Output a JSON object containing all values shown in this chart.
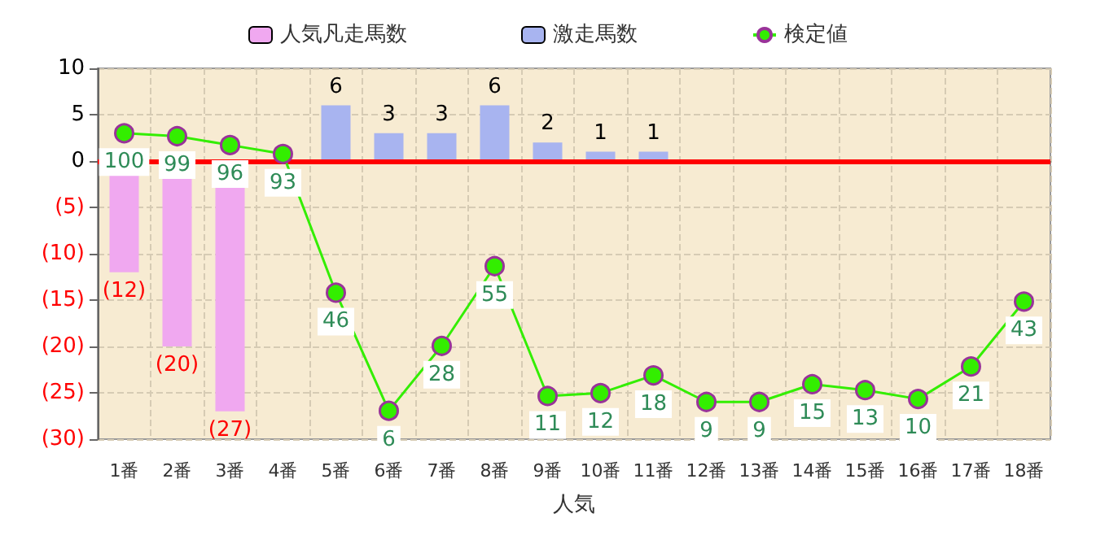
{
  "chart_data": {
    "type": "bar",
    "xlabel": "人気",
    "categories": [
      "1番",
      "2番",
      "3番",
      "4番",
      "5番",
      "6番",
      "7番",
      "8番",
      "9番",
      "10番",
      "11番",
      "12番",
      "13番",
      "14番",
      "15番",
      "16番",
      "17番",
      "18番"
    ],
    "series": [
      {
        "name": "人気凡走馬数",
        "color": "#f0a8f0",
        "values": [
          -12,
          -20,
          -27,
          null,
          null,
          null,
          null,
          null,
          null,
          null,
          null,
          null,
          null,
          null,
          null,
          null,
          null,
          null
        ],
        "value_labels": [
          "(12)",
          "(20)",
          "(27)",
          null,
          null,
          null,
          null,
          null,
          null,
          null,
          null,
          null,
          null,
          null,
          null,
          null,
          null,
          null
        ]
      },
      {
        "name": "激走馬数",
        "color": "#a8b4f0",
        "values": [
          null,
          null,
          null,
          null,
          6,
          3,
          3,
          6,
          2,
          1,
          1,
          null,
          null,
          null,
          null,
          null,
          null,
          null
        ],
        "value_labels": [
          null,
          null,
          null,
          null,
          "6",
          "3",
          "3",
          "6",
          "2",
          "1",
          "1",
          null,
          null,
          null,
          null,
          null,
          null,
          null
        ]
      },
      {
        "name": "検定値",
        "type": "line",
        "axis": "y2",
        "color": "#33ee00",
        "values": [
          100,
          99,
          96,
          93,
          46,
          6,
          28,
          55,
          11,
          12,
          18,
          9,
          9,
          15,
          13,
          10,
          21,
          43
        ],
        "value_labels": [
          "100",
          "99",
          "96",
          "93",
          "46",
          "6",
          "28",
          "55",
          "11",
          "12",
          "18",
          "9",
          "9",
          "15",
          "13",
          "10",
          "21",
          "43"
        ]
      }
    ],
    "ylim": [
      -30,
      10
    ],
    "yticks": [
      {
        "value": -30,
        "label": "(30)"
      },
      {
        "value": -25,
        "label": "(25)"
      },
      {
        "value": -20,
        "label": "(20)"
      },
      {
        "value": -15,
        "label": "(15)"
      },
      {
        "value": -10,
        "label": "(10)"
      },
      {
        "value": -5,
        "label": "(5)"
      },
      0,
      5,
      10
    ],
    "y2lim": [
      -3.6,
      122
    ],
    "ref_lines": [
      {
        "axis": "y",
        "value": 0,
        "color": "#ff0000"
      }
    ],
    "grid": true,
    "legend": "top",
    "marker": "circle"
  }
}
